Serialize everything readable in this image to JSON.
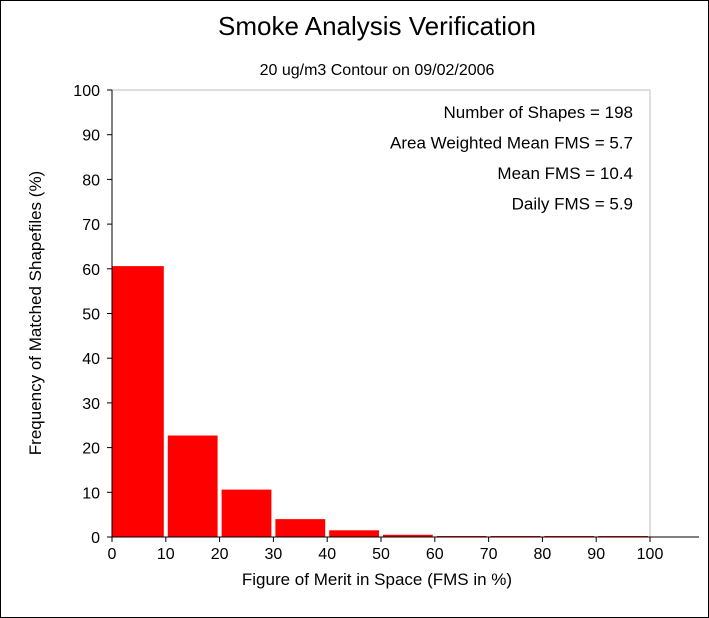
{
  "chart_data": {
    "type": "bar",
    "title": "Smoke Analysis Verification",
    "subtitle": "20 ug/m3 Contour on 09/02/2006",
    "xlabel": "Figure of Merit in Space (FMS in %)",
    "ylabel": "Frequency of Matched Shapefiles (%)",
    "xlim": [
      0,
      100
    ],
    "ylim": [
      0,
      100
    ],
    "xticks": [
      "0",
      "10",
      "20",
      "30",
      "40",
      "50",
      "60",
      "70",
      "80",
      "90",
      "100"
    ],
    "yticks": [
      "0",
      "10",
      "20",
      "30",
      "40",
      "50",
      "60",
      "70",
      "80",
      "90",
      "100"
    ],
    "grid": false,
    "bar_color": "#ff0000",
    "bins": [
      {
        "x0": 0,
        "x1": 10,
        "value": 60.6
      },
      {
        "x0": 10,
        "x1": 20,
        "value": 22.7
      },
      {
        "x0": 20,
        "x1": 30,
        "value": 10.6
      },
      {
        "x0": 30,
        "x1": 40,
        "value": 4.0
      },
      {
        "x0": 40,
        "x1": 50,
        "value": 1.5
      },
      {
        "x0": 50,
        "x1": 60,
        "value": 0.5
      },
      {
        "x0": 60,
        "x1": 70,
        "value": 0
      },
      {
        "x0": 70,
        "x1": 80,
        "value": 0
      },
      {
        "x0": 80,
        "x1": 90,
        "value": 0
      },
      {
        "x0": 90,
        "x1": 100,
        "value": 0
      }
    ],
    "annotations": [
      "Number of Shapes = 198",
      "Area Weighted Mean FMS = 5.7",
      "Mean FMS = 10.4",
      "Daily FMS = 5.9"
    ]
  }
}
